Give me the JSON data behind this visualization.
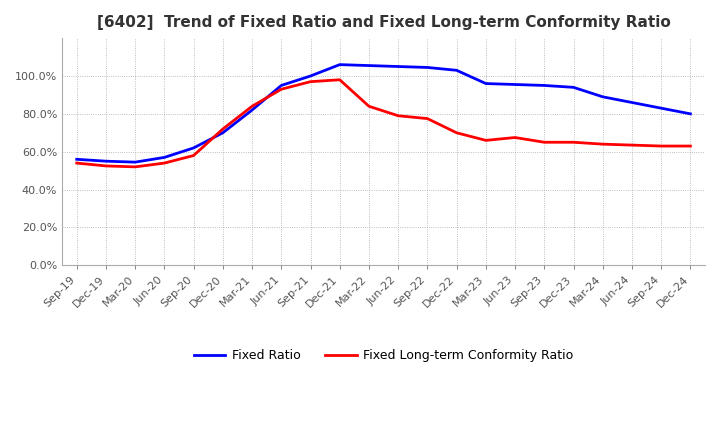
{
  "title": "[6402]  Trend of Fixed Ratio and Fixed Long-term Conformity Ratio",
  "x_labels": [
    "Sep-19",
    "Dec-19",
    "Mar-20",
    "Jun-20",
    "Sep-20",
    "Dec-20",
    "Mar-21",
    "Jun-21",
    "Sep-21",
    "Dec-21",
    "Mar-22",
    "Jun-22",
    "Sep-22",
    "Dec-22",
    "Mar-23",
    "Jun-23",
    "Sep-23",
    "Dec-23",
    "Mar-24",
    "Jun-24",
    "Sep-24",
    "Dec-24"
  ],
  "fixed_ratio": [
    56.0,
    55.0,
    54.5,
    57.0,
    62.0,
    70.0,
    82.0,
    95.0,
    100.0,
    106.0,
    105.5,
    105.0,
    104.5,
    103.0,
    96.0,
    95.5,
    95.0,
    94.0,
    89.0,
    86.0,
    83.0,
    80.0
  ],
  "fixed_lt_ratio": [
    54.0,
    52.5,
    52.0,
    54.0,
    58.0,
    72.0,
    84.0,
    93.0,
    97.0,
    98.0,
    84.0,
    79.0,
    77.5,
    70.0,
    66.0,
    67.5,
    65.0,
    65.0,
    64.0,
    63.5,
    63.0,
    63.0
  ],
  "ylim": [
    0.0,
    120.0
  ],
  "yticks": [
    0.0,
    20.0,
    40.0,
    60.0,
    80.0,
    100.0
  ],
  "line_color_fixed": "#0000FF",
  "line_color_lt": "#FF0000",
  "legend_labels": [
    "Fixed Ratio",
    "Fixed Long-term Conformity Ratio"
  ],
  "background_color": "#FFFFFF",
  "grid_color": "#AAAAAA"
}
